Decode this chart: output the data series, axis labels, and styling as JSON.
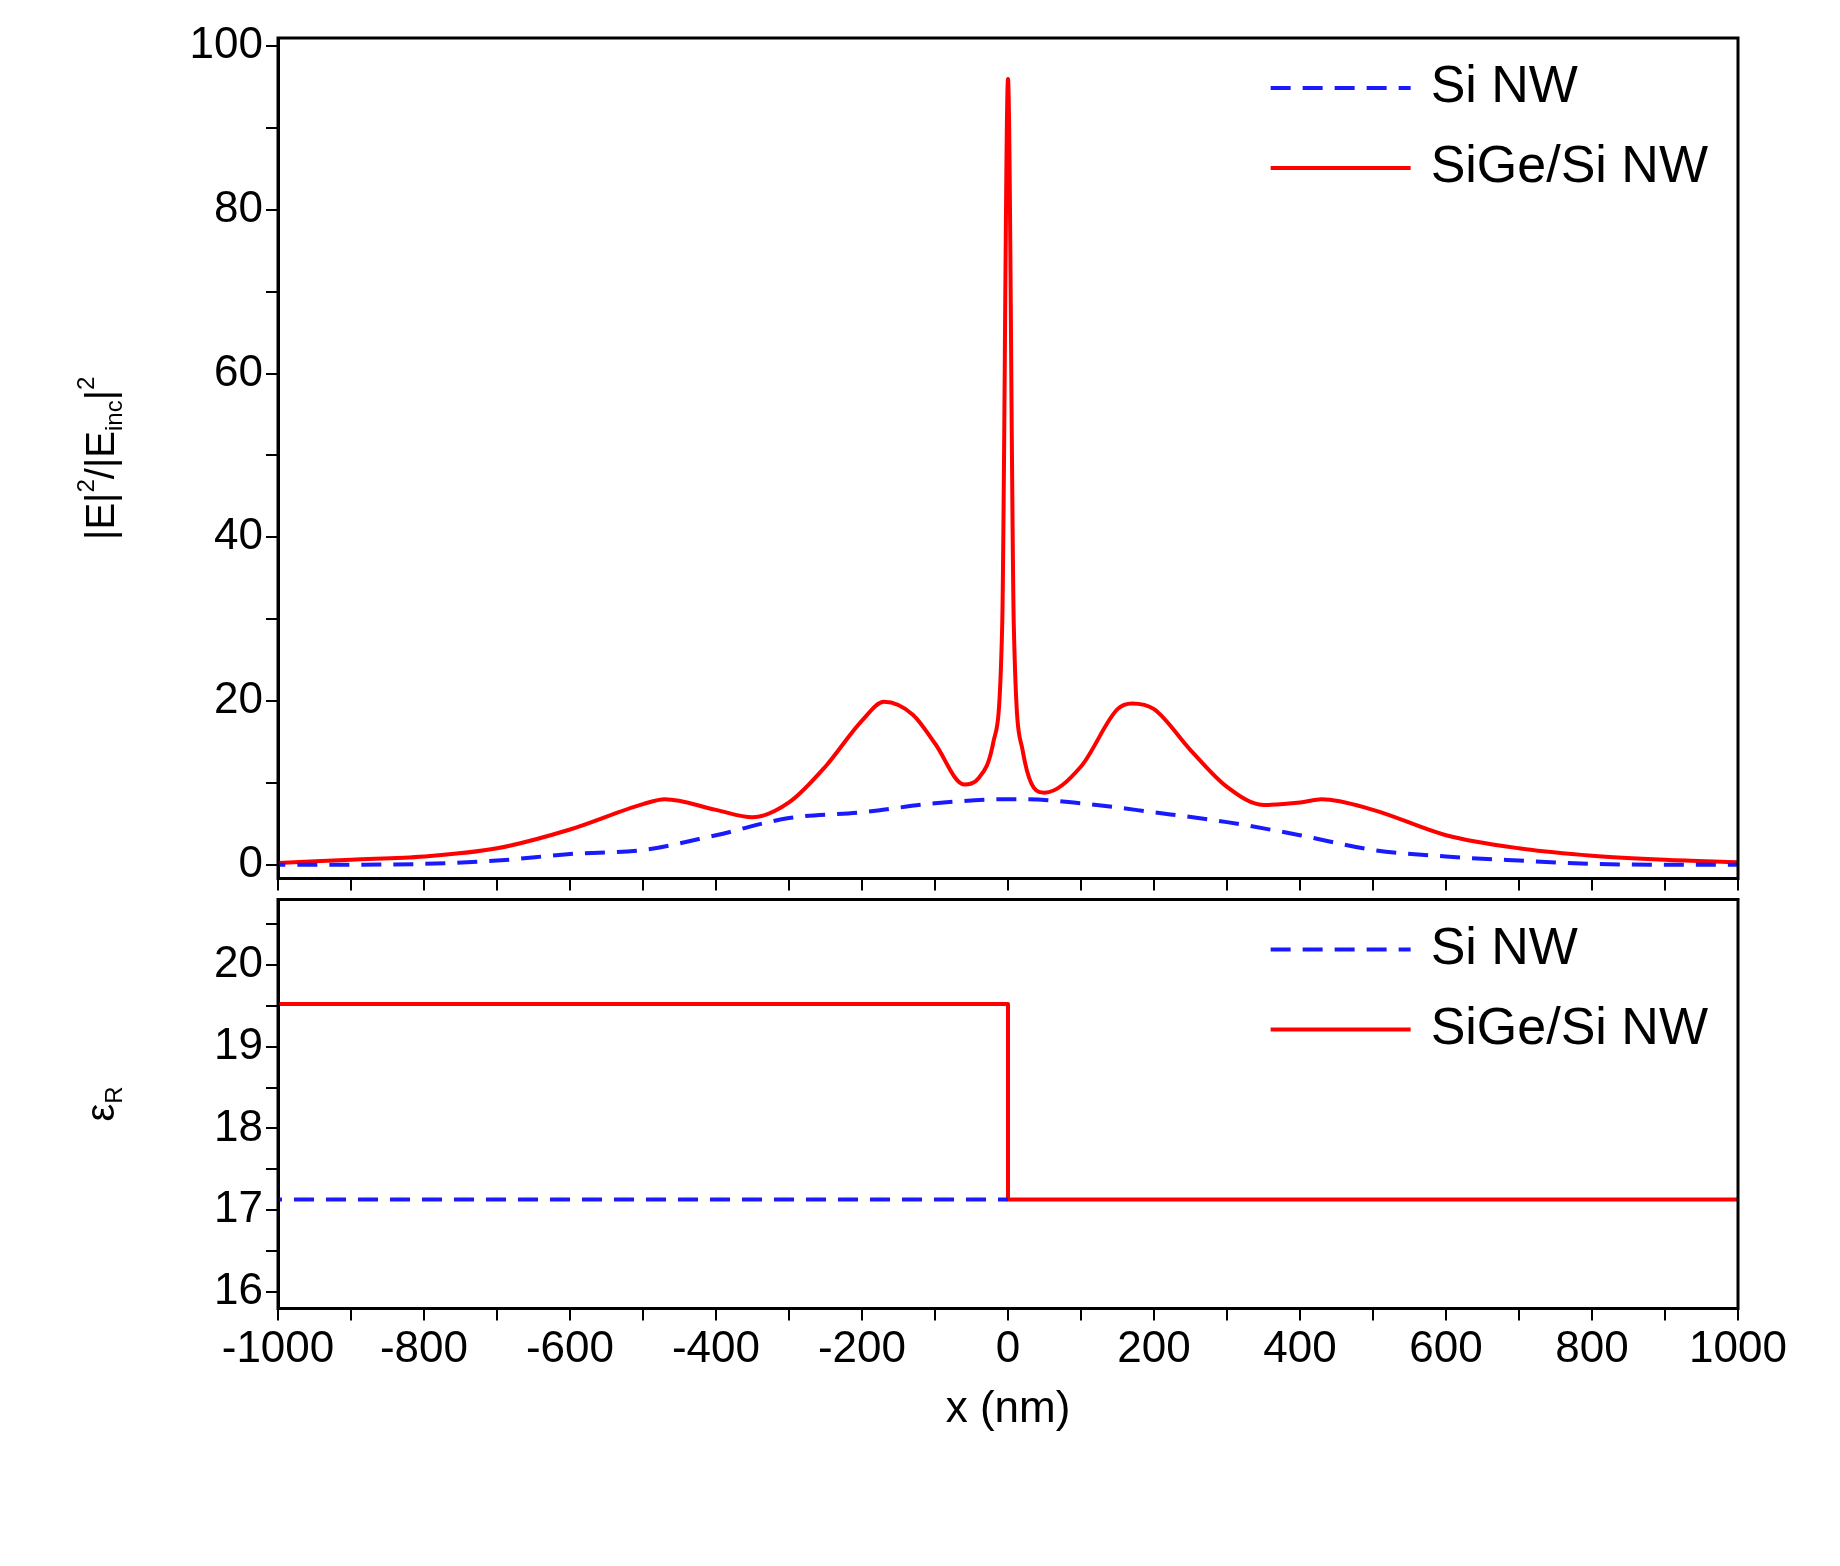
{
  "chart_data": [
    {
      "type": "line",
      "ylabel": "|E|$^{2}$/|E$_{inc}$|$^{2}$",
      "xlim": [
        -1000,
        1000
      ],
      "ylim": [
        -1.7,
        101
      ],
      "xticks": [
        -1000,
        {
          "value": -900,
          "label": null
        },
        -800,
        {
          "value": -700,
          "label": null
        },
        -600,
        {
          "value": -500,
          "label": null
        },
        -400,
        {
          "value": -300,
          "label": null
        },
        -200,
        {
          "value": -100,
          "label": null
        },
        0,
        {
          "value": 100,
          "label": null
        },
        200,
        {
          "value": 300,
          "label": null
        },
        400,
        {
          "value": 500,
          "label": null
        },
        600,
        {
          "value": 700,
          "label": null
        },
        800,
        {
          "value": 900,
          "label": null
        },
        1000
      ],
      "yticks": [
        0,
        {
          "value": 10,
          "label": null
        },
        20,
        {
          "value": 30,
          "label": null
        },
        40,
        {
          "value": 50,
          "label": null
        },
        60,
        {
          "value": 70,
          "label": null
        },
        80,
        {
          "value": 90,
          "label": null
        },
        100
      ],
      "tick_labels": "y",
      "grid": false,
      "legend": "top right",
      "marker": "none",
      "series": [
        {
          "name": "Si NW",
          "color": "#1a1aff",
          "line_style": "dashed",
          "x": [
            -1000,
            -900,
            -800,
            -700,
            -600,
            -500,
            -400,
            -300,
            -200,
            -100,
            0,
            20,
            100,
            200,
            300,
            400,
            500,
            600,
            700,
            800,
            900,
            1000
          ],
          "values": [
            0,
            0,
            0.1,
            0.5,
            1.3,
            1.8,
            3.6,
            5.7,
            6.4,
            7.5,
            8,
            8,
            7.5,
            6.4,
            5.2,
            3.6,
            1.8,
            1.0,
            0.5,
            0.1,
            0,
            0
          ]
        },
        {
          "name": "SiGe/Si NW",
          "color": "#ff0000",
          "line_style": "solid",
          "x": [
            -1000,
            -900,
            -800,
            -700,
            -600,
            -500,
            -470,
            -400,
            -350,
            -300,
            -250,
            -200,
            -170,
            -130,
            -100,
            -60,
            -40,
            -20,
            -8,
            0,
            8,
            20,
            50,
            100,
            150,
            170,
            200,
            250,
            300,
            350,
            400,
            430,
            500,
            600,
            700,
            800,
            900,
            1000
          ],
          "values": [
            0.2,
            0.6,
            1.0,
            2,
            4.3,
            7.4,
            8.0,
            6.7,
            5.8,
            7.6,
            12,
            17.6,
            19.9,
            18.3,
            14.8,
            9.8,
            10.6,
            15,
            29,
            96,
            29,
            14,
            8.8,
            12,
            19,
            19.7,
            19,
            14,
            9.5,
            7.3,
            7.6,
            8.0,
            6.7,
            3.6,
            2,
            1.1,
            0.6,
            0.3
          ]
        }
      ]
    },
    {
      "type": "line",
      "ylabel": "ε$_{R}$",
      "xlabel": "x (nm)",
      "xlim": [
        -1000,
        1000
      ],
      "ylim": [
        15.8,
        20.8
      ],
      "xticks": [
        -1000,
        {
          "value": -900,
          "label": null
        },
        -800,
        {
          "value": -700,
          "label": null
        },
        -600,
        {
          "value": -500,
          "label": null
        },
        -400,
        {
          "value": -300,
          "label": null
        },
        -200,
        {
          "value": -100,
          "label": null
        },
        0,
        {
          "value": 100,
          "label": null
        },
        200,
        {
          "value": 300,
          "label": null
        },
        400,
        {
          "value": 500,
          "label": null
        },
        600,
        {
          "value": 700,
          "label": null
        },
        800,
        {
          "value": 900,
          "label": null
        },
        1000
      ],
      "yticks": [
        16,
        {
          "value": 16.5,
          "label": null
        },
        17,
        {
          "value": 17.5,
          "label": null
        },
        18,
        {
          "value": 18.5,
          "label": null
        },
        19,
        {
          "value": 19.5,
          "label": null
        },
        20,
        {
          "value": 20.5,
          "label": null
        }
      ],
      "grid": false,
      "legend": "top right",
      "marker": "none",
      "series": [
        {
          "name": "Si NW",
          "color": "#1a1aff",
          "line_style": "dashed",
          "x": [
            -1000,
            0
          ],
          "values": [
            17.13,
            17.13
          ]
        },
        {
          "name": "SiGe/Si NW",
          "color": "#ff0000",
          "line_style": "solid",
          "x": [
            -1000,
            0,
            0,
            1000
          ],
          "values": [
            19.52,
            19.52,
            17.13,
            17.13
          ]
        }
      ]
    }
  ]
}
